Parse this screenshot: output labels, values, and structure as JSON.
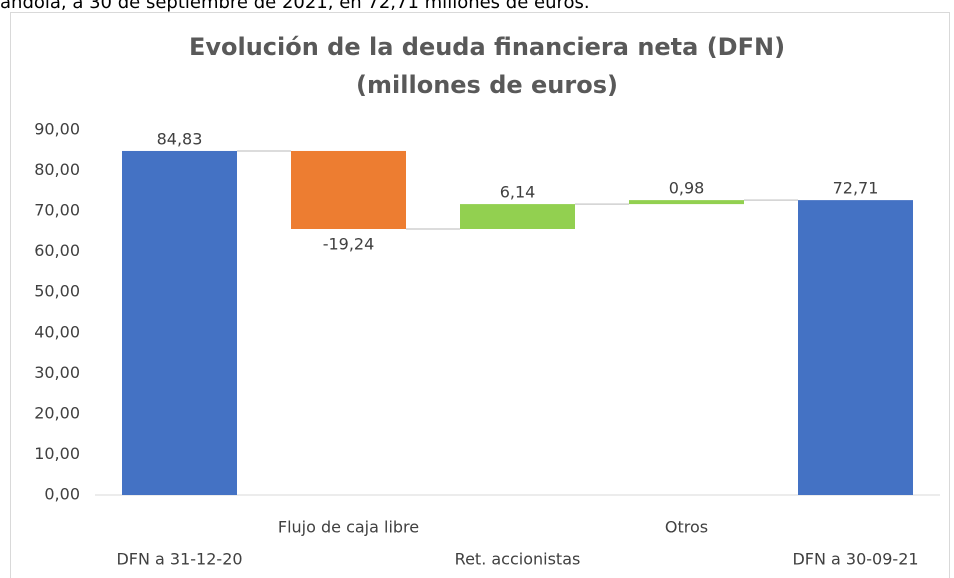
{
  "caption": "andola, a 30 de septiembre de 2021, en 72,71 millones de euros.",
  "chart_data": {
    "type": "waterfall",
    "title": [
      "Evolución de la deuda financiera neta (DFN)",
      "(millones de euros)"
    ],
    "categories": [
      "DFN a 31-12-20",
      "Flujo de caja libre",
      "Ret. accionistas",
      "Otros",
      "DFN a 30-09-21"
    ],
    "measure": [
      "total",
      "relative",
      "relative",
      "relative",
      "total"
    ],
    "values": [
      84.83,
      -19.24,
      6.14,
      0.98,
      72.71
    ],
    "value_labels": [
      "84,83",
      "-19,24",
      "6,14",
      "0,98",
      "72,71"
    ],
    "colors": [
      "#4472c4",
      "#ed7d31",
      "#92d050",
      "#92d050",
      "#4472c4"
    ],
    "ylim": [
      0,
      90
    ],
    "yticks": [
      {
        "value": 0,
        "label": "0,00"
      },
      {
        "value": 10,
        "label": "10,00"
      },
      {
        "value": 20,
        "label": "20,00"
      },
      {
        "value": 30,
        "label": "30,00"
      },
      {
        "value": 40,
        "label": "40,00"
      },
      {
        "value": 50,
        "label": "50,00"
      },
      {
        "value": 60,
        "label": "60,00"
      },
      {
        "value": 70,
        "label": "70,00"
      },
      {
        "value": 80,
        "label": "80,00"
      },
      {
        "value": 90,
        "label": "90,00"
      }
    ],
    "grid": false
  }
}
